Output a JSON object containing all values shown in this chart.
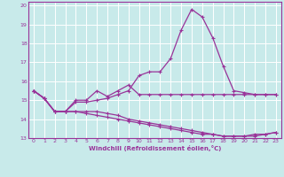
{
  "xlabel": "Windchill (Refroidissement éolien,°C)",
  "background_color": "#c8eaea",
  "grid_color": "#aad8d8",
  "line_color": "#993399",
  "xlim": [
    -0.5,
    23.5
  ],
  "ylim": [
    13,
    20.2
  ],
  "yticks": [
    13,
    14,
    15,
    16,
    17,
    18,
    19,
    20
  ],
  "xticks": [
    0,
    1,
    2,
    3,
    4,
    5,
    6,
    7,
    8,
    9,
    10,
    11,
    12,
    13,
    14,
    15,
    16,
    17,
    18,
    19,
    20,
    21,
    22,
    23
  ],
  "curves": [
    [
      15.5,
      15.1,
      14.4,
      14.4,
      15.0,
      15.0,
      15.5,
      15.2,
      15.5,
      15.8,
      15.3,
      15.3,
      15.3,
      15.3,
      15.3,
      15.3,
      15.3,
      15.3,
      15.3,
      15.3,
      15.3,
      15.3,
      15.3,
      15.3
    ],
    [
      15.5,
      15.1,
      14.4,
      14.4,
      14.9,
      14.9,
      15.0,
      15.1,
      15.3,
      15.5,
      16.3,
      16.5,
      16.5,
      17.2,
      18.7,
      19.8,
      19.4,
      18.3,
      16.8,
      15.5,
      15.4,
      15.3,
      15.3,
      15.3
    ],
    [
      15.5,
      15.1,
      14.4,
      14.4,
      14.4,
      14.4,
      14.4,
      14.3,
      14.2,
      14.0,
      13.9,
      13.8,
      13.7,
      13.6,
      13.5,
      13.4,
      13.3,
      13.2,
      13.1,
      13.1,
      13.1,
      13.2,
      13.2,
      13.3
    ],
    [
      15.5,
      15.1,
      14.4,
      14.4,
      14.4,
      14.3,
      14.2,
      14.1,
      14.0,
      13.9,
      13.8,
      13.7,
      13.6,
      13.5,
      13.4,
      13.3,
      13.2,
      13.2,
      13.1,
      13.1,
      13.1,
      13.1,
      13.2,
      13.3
    ]
  ]
}
